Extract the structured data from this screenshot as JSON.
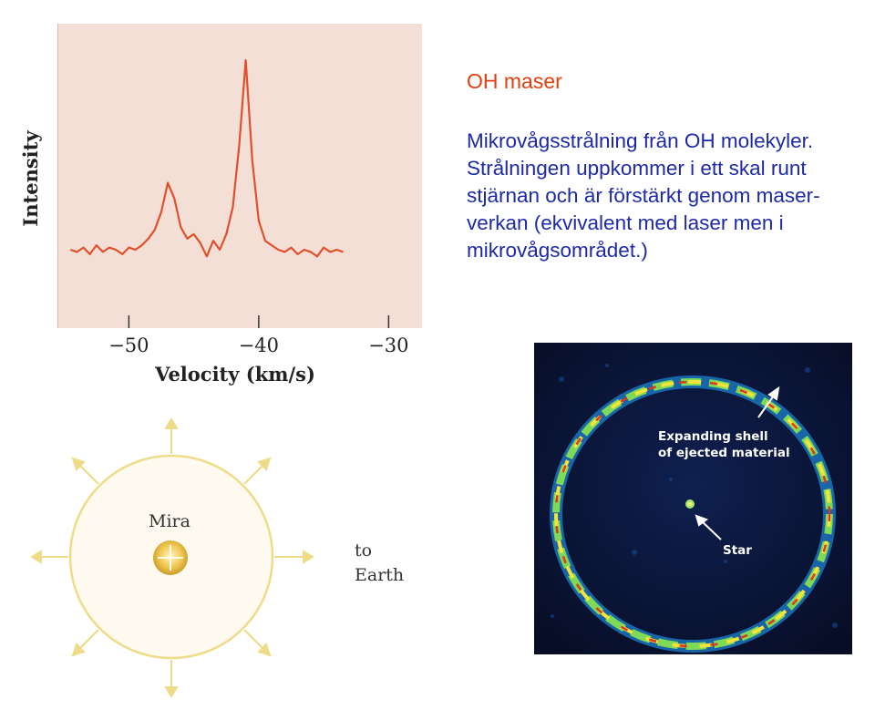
{
  "slide": {
    "title": "OH maser",
    "body_lines": [
      "Mikrovågsstrålning från OH molekyler.",
      "Strålningen uppkommer i ett skal runt",
      "stjärnan och är förstärkt genom maser-",
      "verkan (ekvivalent med laser men i",
      "mikrovågsområdet.)"
    ]
  },
  "chart_data": {
    "type": "line",
    "xlabel": "Velocity (km/s)",
    "ylabel": "Intensity",
    "xlim": [
      -55.5,
      -27.5
    ],
    "x_ticks": [
      -50,
      -40,
      -30
    ],
    "x_tick_labels": [
      "−50",
      "−40",
      "−30"
    ],
    "ylim": [
      0,
      1
    ],
    "grid": false,
    "line_color": "#e0502a",
    "series": [
      {
        "x": [
          -54.5,
          -54.0,
          -53.5,
          -53.0,
          -52.5,
          -52.0,
          -51.5,
          -51.0,
          -50.5,
          -50.0,
          -49.5,
          -49.0,
          -48.5,
          -48.0,
          -47.5,
          -47.0,
          -46.5,
          -46.0,
          -45.5,
          -45.0,
          -44.5,
          -44.0,
          -43.5,
          -43.0,
          -42.5,
          -42.0,
          -41.5,
          -41.0,
          -40.5,
          -40.0,
          -39.5,
          -39.0,
          -38.5,
          -38.0,
          -37.5,
          -37.0,
          -36.5,
          -36.0,
          -35.5,
          -35.0,
          -34.5,
          -34.0,
          -33.5
        ],
        "values": [
          0.15,
          0.14,
          0.16,
          0.13,
          0.17,
          0.14,
          0.16,
          0.15,
          0.13,
          0.16,
          0.15,
          0.17,
          0.2,
          0.24,
          0.32,
          0.45,
          0.38,
          0.25,
          0.2,
          0.22,
          0.18,
          0.12,
          0.19,
          0.15,
          0.22,
          0.34,
          0.62,
          1.0,
          0.55,
          0.28,
          0.19,
          0.17,
          0.15,
          0.14,
          0.16,
          0.13,
          0.15,
          0.14,
          0.12,
          0.16,
          0.14,
          0.15,
          0.14
        ]
      }
    ]
  },
  "diagram": {
    "star_label": "Mira",
    "direction_line1": "to",
    "direction_line2": "Earth"
  },
  "radio_image": {
    "shell_label_line1": "Expanding shell",
    "shell_label_line2": "of ejected material",
    "star_label": "Star"
  }
}
